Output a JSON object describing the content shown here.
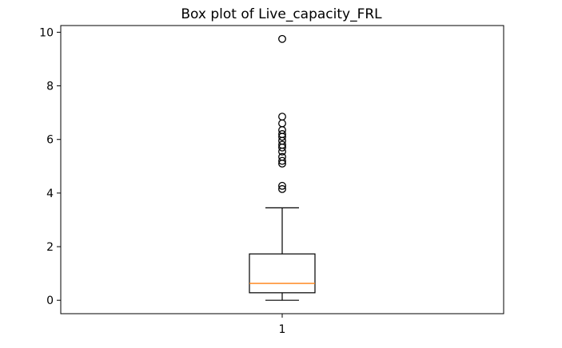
{
  "chart_data": {
    "type": "box",
    "title": "Box plot of Live_capacity_FRL",
    "xlabel": "",
    "ylabel": "",
    "categories": [
      "1"
    ],
    "ylim": [
      -0.5,
      10.25
    ],
    "yticks": [
      0,
      2,
      4,
      6,
      8,
      10
    ],
    "xticks": [
      "1"
    ],
    "grid": false,
    "legend": "none",
    "colors": {
      "box": "#000000",
      "median": "#ff7f0e",
      "flier": "#000000",
      "frame": "#000000",
      "background": "#ffffff"
    },
    "boxes": [
      {
        "category": "1",
        "whisker_low": 0.0,
        "q1": 0.28,
        "median": 0.63,
        "q3": 1.73,
        "whisker_high": 3.45,
        "fliers": [
          4.15,
          4.27,
          5.1,
          5.2,
          5.35,
          5.55,
          5.7,
          5.8,
          5.95,
          6.1,
          6.2,
          6.35,
          6.6,
          6.85,
          9.75
        ]
      }
    ]
  }
}
